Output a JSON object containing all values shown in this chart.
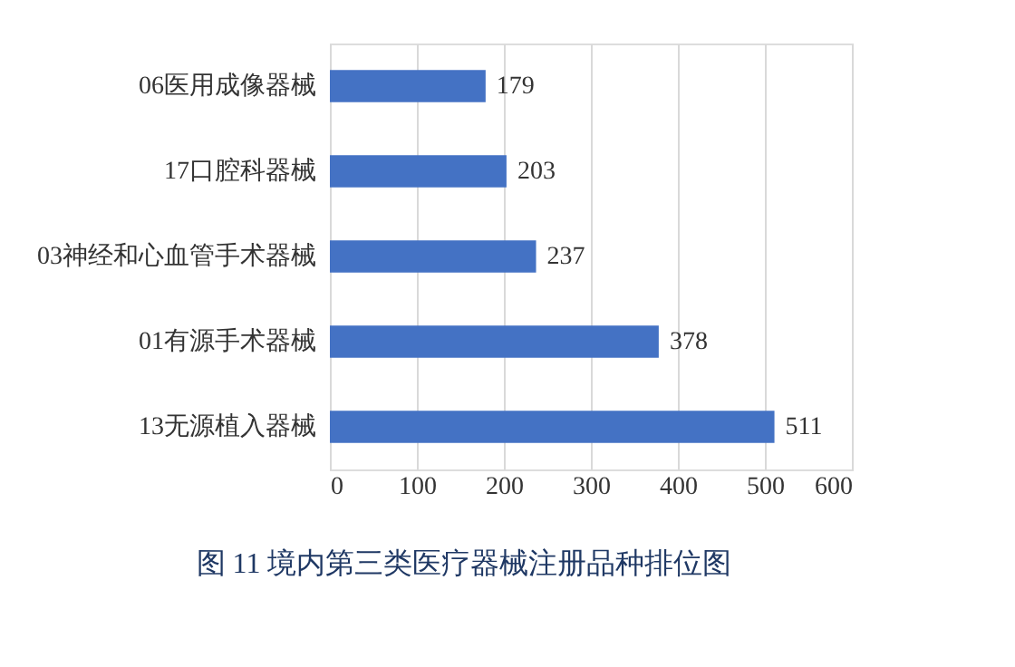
{
  "chart_data": {
    "type": "bar",
    "orientation": "horizontal",
    "title": "图 11  境内第三类医疗器械注册品种排位图",
    "categories": [
      "06医用成像器械",
      "17口腔科器械",
      "03神经和心血管手术器械",
      "01有源手术器械",
      "13无源植入器械"
    ],
    "values": [
      179,
      203,
      237,
      378,
      511
    ],
    "color": "#4472c4",
    "xlim": [
      0,
      600
    ],
    "xticks": [
      0,
      100,
      200,
      300,
      400,
      500,
      600
    ],
    "grid": "x",
    "data_labels": true
  }
}
